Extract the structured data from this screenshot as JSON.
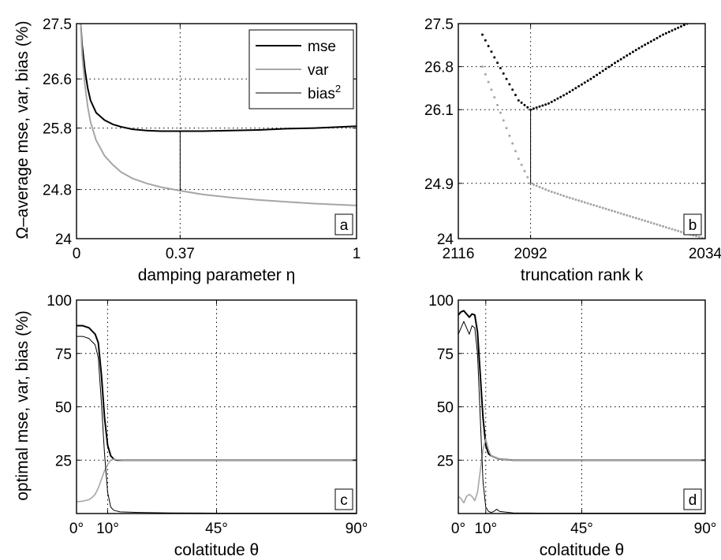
{
  "figure": {
    "shared_ylabel_top": "Ω–average mse, var, bias (%)",
    "shared_ylabel_bottom": "optimal mse, var, bias (%)"
  },
  "chart_data": [
    {
      "panel": "a",
      "type": "line",
      "xlabel": "damping parameter η",
      "ylabel": "Ω–average mse, var, bias (%)",
      "xlim": [
        0,
        1
      ],
      "ylim": [
        24,
        27.5
      ],
      "x_ticks": [
        0,
        0.37,
        1
      ],
      "x_tick_labels": [
        "0",
        "0.37",
        "1"
      ],
      "y_ticks": [
        24,
        24.8,
        25.8,
        26.6,
        27.5
      ],
      "y_tick_labels": [
        "24",
        "24.8",
        "25.8",
        "26.6",
        "27.5"
      ],
      "grid": true,
      "legend": {
        "placement": "top-right",
        "entries": [
          {
            "label": "mse",
            "color": "#000000",
            "width": 2
          },
          {
            "label": "var",
            "color": "#a6a6a6",
            "width": 2
          },
          {
            "label": "bias",
            "sup": "2",
            "color": "#000000",
            "width": 1
          }
        ]
      },
      "series": [
        {
          "name": "mse",
          "color": "#000000",
          "width": 2,
          "x": [
            0.015,
            0.02,
            0.03,
            0.04,
            0.05,
            0.07,
            0.1,
            0.13,
            0.16,
            0.2,
            0.25,
            0.3,
            0.37,
            0.45,
            0.55,
            0.65,
            0.75,
            0.85,
            1.0
          ],
          "y": [
            27.5,
            27.15,
            26.75,
            26.45,
            26.25,
            26.05,
            25.93,
            25.86,
            25.82,
            25.78,
            25.76,
            25.75,
            25.75,
            25.75,
            25.76,
            25.77,
            25.79,
            25.8,
            25.83
          ]
        },
        {
          "name": "var",
          "color": "#a6a6a6",
          "width": 2,
          "x": [
            0.015,
            0.02,
            0.03,
            0.04,
            0.05,
            0.07,
            0.1,
            0.13,
            0.16,
            0.2,
            0.25,
            0.3,
            0.37,
            0.45,
            0.55,
            0.65,
            0.75,
            0.85,
            1.0
          ],
          "y": [
            27.5,
            27.0,
            26.5,
            26.15,
            25.9,
            25.6,
            25.35,
            25.2,
            25.08,
            24.98,
            24.9,
            24.84,
            24.78,
            24.72,
            24.67,
            24.63,
            24.6,
            24.57,
            24.54
          ]
        }
      ],
      "marker_line": {
        "x": 0.37,
        "y_from": 24.78,
        "y_to": 25.75
      }
    },
    {
      "panel": "b",
      "type": "scatter",
      "xlabel": "truncation rank k",
      "xlim": [
        2116,
        2034
      ],
      "ylim": [
        24,
        27.5
      ],
      "x_ticks": [
        2116,
        2092,
        2034
      ],
      "x_tick_labels": [
        "2116",
        "2092",
        "2034"
      ],
      "y_ticks": [
        24,
        24.9,
        26.1,
        26.8,
        27.5
      ],
      "y_tick_labels": [
        "24",
        "24.9",
        "26.1",
        "26.8",
        "27.5"
      ],
      "grid": true,
      "series": [
        {
          "name": "mse",
          "color": "#000000",
          "x": [
            2108,
            2104,
            2100,
            2096,
            2092,
            2086,
            2080,
            2072,
            2064,
            2056,
            2048,
            2040
          ],
          "y": [
            27.32,
            26.95,
            26.6,
            26.25,
            26.1,
            26.2,
            26.36,
            26.6,
            26.86,
            27.1,
            27.32,
            27.5
          ]
        },
        {
          "name": "var",
          "color": "#a6a6a6",
          "x": [
            2108,
            2104,
            2100,
            2096,
            2092,
            2086,
            2080,
            2072,
            2064,
            2056,
            2048,
            2040,
            2034
          ],
          "y": [
            26.8,
            26.3,
            25.8,
            25.3,
            24.9,
            24.78,
            24.68,
            24.56,
            24.44,
            24.32,
            24.2,
            24.08,
            24.0
          ]
        }
      ],
      "marker_line": {
        "x": 2092,
        "y_from": 24.9,
        "y_to": 26.1
      }
    },
    {
      "panel": "c",
      "type": "line",
      "xlabel": "colatitude θ",
      "ylabel": "optimal mse, var, bias (%)",
      "xlim": [
        0,
        90
      ],
      "ylim": [
        0,
        100
      ],
      "x_ticks": [
        0,
        10,
        45,
        90
      ],
      "x_tick_labels": [
        "0°",
        "10°",
        "45°",
        "90°"
      ],
      "y_ticks": [
        25,
        50,
        75,
        100
      ],
      "y_tick_labels": [
        "25",
        "50",
        "75",
        "100"
      ],
      "grid": true,
      "series": [
        {
          "name": "mse",
          "color": "#000000",
          "width": 2,
          "x": [
            0,
            2,
            4,
            6,
            7,
            8,
            9,
            10,
            11,
            12,
            13,
            15,
            20,
            30,
            45,
            60,
            75,
            90
          ],
          "y": [
            88,
            88,
            87,
            84,
            80,
            65,
            45,
            32,
            27,
            25.5,
            25,
            25,
            25,
            25,
            25,
            25,
            25,
            25
          ]
        },
        {
          "name": "var",
          "color": "#a6a6a6",
          "width": 1.6,
          "x": [
            0,
            2,
            4,
            5,
            6,
            7,
            8,
            9,
            10,
            11,
            12,
            13,
            15,
            20,
            30,
            45,
            60,
            75,
            90
          ],
          "y": [
            5.5,
            5.8,
            6.5,
            7.5,
            9,
            12,
            16,
            20,
            23,
            25,
            25.5,
            25.2,
            25,
            25,
            25,
            25,
            25,
            25,
            25
          ]
        },
        {
          "name": "bias2",
          "color": "#000000",
          "width": 1,
          "x": [
            0,
            2,
            4,
            6,
            7,
            8,
            9,
            10,
            11,
            12,
            14,
            20,
            30,
            45,
            90
          ],
          "y": [
            83,
            83,
            82,
            79,
            73,
            52,
            28,
            10,
            3,
            1.5,
            0.8,
            0.5,
            0.3,
            0.2,
            0.2
          ]
        }
      ]
    },
    {
      "panel": "d",
      "type": "line",
      "xlabel": "colatitude θ",
      "xlim": [
        0,
        90
      ],
      "ylim": [
        0,
        100
      ],
      "x_ticks": [
        0,
        10,
        45,
        90
      ],
      "x_tick_labels": [
        "0°",
        "10°",
        "45°",
        "90°"
      ],
      "y_ticks": [
        25,
        50,
        75,
        100
      ],
      "y_tick_labels": [
        "25",
        "50",
        "75",
        "100"
      ],
      "grid": true,
      "series": [
        {
          "name": "mse",
          "color": "#000000",
          "width": 2,
          "x": [
            0,
            1,
            2,
            3,
            4,
            5,
            6,
            7,
            8,
            9,
            10,
            11,
            12,
            13,
            14,
            15,
            20,
            30,
            45,
            60,
            75,
            90
          ],
          "y": [
            93,
            94.5,
            95,
            93.5,
            92,
            93.5,
            93,
            85,
            65,
            45,
            32,
            28,
            27,
            26.5,
            26,
            25.5,
            25,
            25,
            25,
            25,
            25,
            25
          ]
        },
        {
          "name": "var",
          "color": "#a6a6a6",
          "width": 1.6,
          "x": [
            0,
            1,
            2,
            3,
            4,
            5,
            6,
            7,
            8,
            9,
            10,
            11,
            12,
            13,
            14,
            15,
            20,
            30,
            45,
            60,
            75,
            90
          ],
          "y": [
            8,
            7,
            5,
            8,
            9,
            8,
            6,
            10,
            20,
            30,
            35,
            30,
            27,
            26.5,
            26,
            25.5,
            25,
            25,
            25,
            25,
            25,
            25
          ]
        },
        {
          "name": "bias2",
          "color": "#000000",
          "width": 1,
          "x": [
            0,
            1,
            2,
            3,
            4,
            5,
            6,
            7,
            8,
            9,
            10,
            11,
            12,
            13,
            14,
            15,
            20,
            30,
            45,
            90
          ],
          "y": [
            84,
            87,
            90,
            87,
            84,
            88,
            87,
            75,
            45,
            15,
            3,
            1,
            0.5,
            1,
            2,
            1,
            0.3,
            0.2,
            0.2,
            0.2
          ]
        }
      ]
    }
  ]
}
